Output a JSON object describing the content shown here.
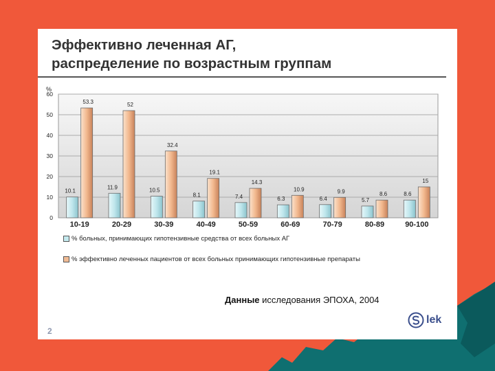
{
  "title": {
    "line1": "Эффективно леченная АГ,",
    "line2": "распределение по возрастным группам"
  },
  "chart_data": {
    "type": "bar",
    "ylabel": "%",
    "ylim": [
      0,
      60
    ],
    "yticks": [
      "0",
      "10",
      "20",
      "30",
      "40",
      "50",
      "60"
    ],
    "grid": true,
    "legend_position": "bottom-left",
    "categories": [
      "10-19",
      "20-29",
      "30-39",
      "40-49",
      "50-59",
      "60-69",
      "70-79",
      "80-89",
      "90-100"
    ],
    "series": [
      {
        "name": "% больных, принимающих гипотензивные средства от всех больных АГ",
        "values": [
          10.1,
          11.9,
          10.5,
          8.1,
          7.4,
          6.3,
          6.4,
          5.7,
          8.6
        ],
        "labels": [
          "10.1",
          "11.9",
          "10.5",
          "8.1",
          "7.4",
          "6.3",
          "6.4",
          "5.7",
          "8.6"
        ],
        "color": "#c3e9ee"
      },
      {
        "name": "% эффективно леченных пациентов от всех больных принимающих гипотензивные препараты",
        "values": [
          53.3,
          52,
          32.4,
          19.1,
          14.3,
          10.9,
          9.9,
          8.6,
          15
        ],
        "labels": [
          "53.3",
          "52",
          "32.4",
          "19.1",
          "14.3",
          "10.9",
          "9.9",
          "8.6",
          "15"
        ],
        "color": "#f0bb94"
      }
    ]
  },
  "source": {
    "bold": "Данные",
    "rest": " исследования ЭПОХА, 2004"
  },
  "page_number": "2",
  "logo": {
    "text": "lek",
    "icon": "lek-logo-icon"
  },
  "colors": {
    "background": "#f0583a",
    "mountains": "#0f6f70",
    "slide": "#ffffff"
  }
}
